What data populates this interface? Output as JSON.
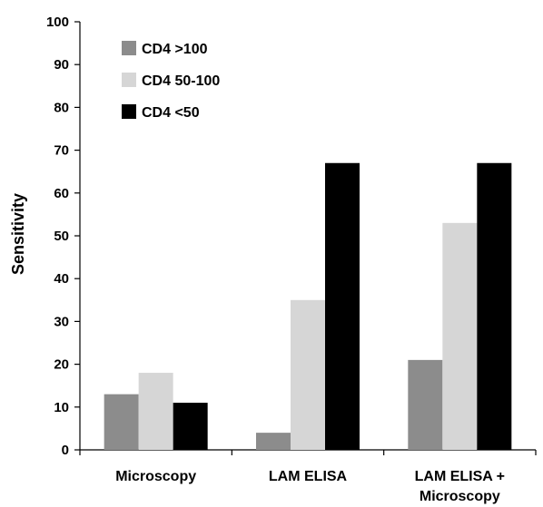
{
  "chart_data": {
    "type": "bar",
    "title": "",
    "xlabel": "",
    "ylabel": "Sensitivity",
    "ylim": [
      0,
      100
    ],
    "yticks": [
      0,
      10,
      20,
      30,
      40,
      50,
      60,
      70,
      80,
      90,
      100
    ],
    "grid": false,
    "legend_position": "top-left",
    "categories": [
      [
        "Microscopy"
      ],
      [
        "LAM ELISA"
      ],
      [
        "LAM ELISA +",
        "Microscopy"
      ]
    ],
    "series": [
      {
        "name": "CD4 >100",
        "color": "#8c8c8c",
        "values": [
          13,
          4,
          21
        ]
      },
      {
        "name": "CD4 50-100",
        "color": "#d6d6d6",
        "values": [
          18,
          35,
          53
        ]
      },
      {
        "name": "CD4 <50",
        "color": "#000000",
        "values": [
          11,
          67,
          67
        ]
      }
    ]
  }
}
